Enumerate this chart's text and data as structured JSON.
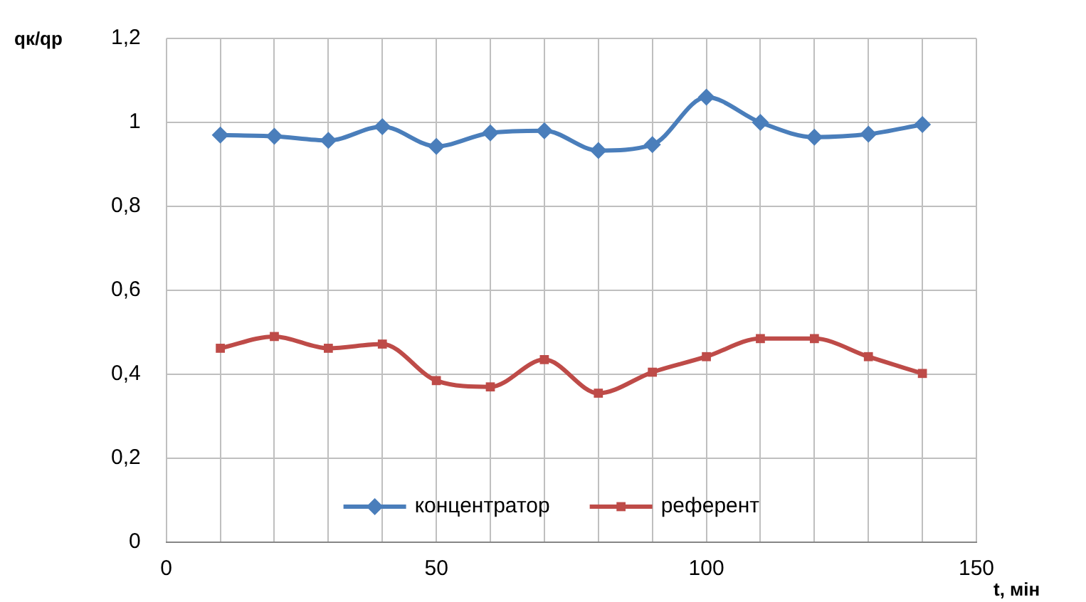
{
  "chart_data": {
    "type": "line",
    "xlabel": "t, мін",
    "ylabel": "qк/qр",
    "x": [
      10,
      20,
      30,
      40,
      50,
      60,
      70,
      80,
      90,
      100,
      110,
      120,
      130,
      140
    ],
    "series": [
      {
        "name": "концентратор",
        "color": "#4a7ebb",
        "marker": "diamond",
        "values": [
          0.97,
          0.967,
          0.957,
          0.99,
          0.943,
          0.975,
          0.98,
          0.933,
          0.947,
          1.06,
          1.0,
          0.965,
          0.972,
          0.995
        ]
      },
      {
        "name": "референт",
        "color": "#be4b48",
        "marker": "square",
        "values": [
          0.462,
          0.49,
          0.462,
          0.472,
          0.385,
          0.37,
          0.435,
          0.355,
          0.405,
          0.442,
          0.485,
          0.485,
          0.442,
          0.402
        ]
      }
    ],
    "xlim": [
      0,
      150
    ],
    "xticks": [
      0,
      {
        "value": 10,
        "label": null
      },
      {
        "value": 20,
        "label": null
      },
      {
        "value": 30,
        "label": null
      },
      {
        "value": 40,
        "label": null
      },
      50,
      {
        "value": 60,
        "label": null
      },
      {
        "value": 70,
        "label": null
      },
      {
        "value": 80,
        "label": null
      },
      {
        "value": 90,
        "label": null
      },
      100,
      {
        "value": 110,
        "label": null
      },
      {
        "value": 120,
        "label": null
      },
      {
        "value": 130,
        "label": null
      },
      {
        "value": 140,
        "label": null
      },
      150
    ],
    "ylim": [
      0,
      1.2
    ],
    "yticks": [
      0,
      {
        "value": 0.2,
        "label": "0,2"
      },
      {
        "value": 0.4,
        "label": "0,4"
      },
      {
        "value": 0.6,
        "label": "0,6"
      },
      {
        "value": 0.8,
        "label": "0,8"
      },
      1,
      {
        "value": 1.2,
        "label": "1,2"
      }
    ],
    "grid": true,
    "legend": "bottom",
    "line_style": "solid"
  }
}
